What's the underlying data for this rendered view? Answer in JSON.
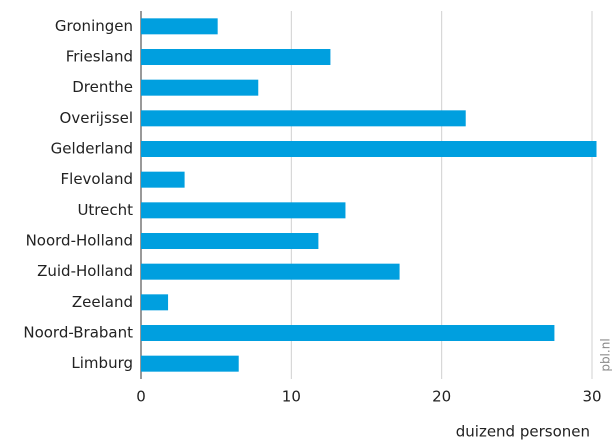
{
  "chart_data": {
    "type": "bar",
    "orientation": "horizontal",
    "categories": [
      "Groningen",
      "Friesland",
      "Drenthe",
      "Overijssel",
      "Gelderland",
      "Flevoland",
      "Utrecht",
      "Noord-Holland",
      "Zuid-Holland",
      "Zeeland",
      "Noord-Brabant",
      "Limburg"
    ],
    "values": [
      5.1,
      12.6,
      7.8,
      21.6,
      30.3,
      2.9,
      13.6,
      11.8,
      17.2,
      1.8,
      27.5,
      6.5
    ],
    "color": "#009fdf",
    "xlim": [
      0,
      30
    ],
    "xticks": [
      0,
      10,
      20,
      30
    ],
    "grid": true,
    "x_axis_label": "duizend personen",
    "source": "pbl.nl"
  }
}
